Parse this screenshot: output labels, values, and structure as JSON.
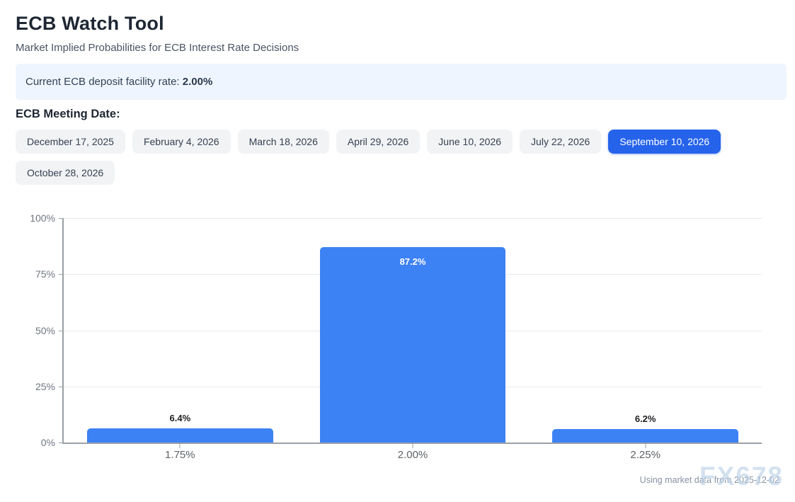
{
  "page": {
    "title": "ECB Watch Tool",
    "subtitle": "Market Implied Probabilities for ECB Interest Rate Decisions"
  },
  "banner": {
    "label": "Current ECB deposit facility rate: ",
    "value": "2.00%"
  },
  "meeting_dates": {
    "heading": "ECB Meeting Date:",
    "selected": "September 10, 2026",
    "items": [
      {
        "label": "December 17, 2025",
        "selected": false
      },
      {
        "label": "February 4, 2026",
        "selected": false
      },
      {
        "label": "March 18, 2026",
        "selected": false
      },
      {
        "label": "April 29, 2026",
        "selected": false
      },
      {
        "label": "June 10, 2026",
        "selected": false
      },
      {
        "label": "July 22, 2026",
        "selected": false
      },
      {
        "label": "September 10, 2026",
        "selected": true
      },
      {
        "label": "October 28, 2026",
        "selected": false
      }
    ]
  },
  "chart_data": {
    "type": "bar",
    "categories": [
      "1.75%",
      "2.00%",
      "2.25%"
    ],
    "values": [
      6.4,
      87.2,
      6.2
    ],
    "value_labels": [
      "6.4%",
      "87.2%",
      "6.2%"
    ],
    "title": "",
    "xlabel": "",
    "ylabel": "",
    "ylim": [
      0,
      100
    ],
    "yticks": [
      0,
      25,
      50,
      75,
      100
    ],
    "ytick_labels": [
      "0%",
      "25%",
      "50%",
      "75%",
      "100%"
    ],
    "grid": true,
    "legend": false,
    "bar_color": "#3d82f4"
  },
  "footer": {
    "note": "Using market data from 2025-12-02",
    "watermark": "FX678"
  },
  "colors": {
    "accent": "#2563eb",
    "bar": "#3d82f4",
    "banner_bg": "#eef5fe",
    "axis": "#9aa0a6",
    "gridline": "#e8eaed"
  }
}
